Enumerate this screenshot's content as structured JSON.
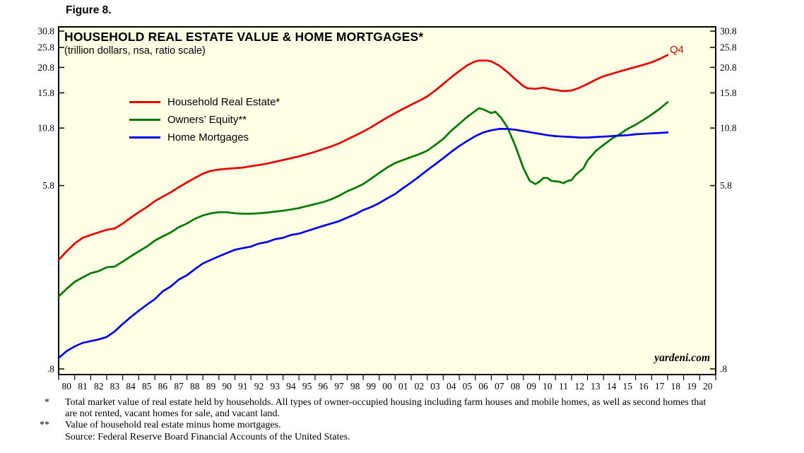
{
  "figure_label": "Figure 8.",
  "chart_data": {
    "type": "line",
    "title": "HOUSEHOLD REAL ESTATE VALUE & HOME MORTGAGES*",
    "subtitle": "(trillion dollars, nsa, ratio scale)",
    "scale": "log (ratio scale)",
    "plot_background": "#ffffe6",
    "watermark": "yardeni.com",
    "end_label": {
      "text": "Q4",
      "color": "#e00000"
    },
    "legend_position": "inside-top-left",
    "grid": false,
    "y_axis": {
      "sides": "both",
      "tick_labels": [
        "30.8",
        "25.8",
        "20.8",
        "15.8",
        "10.8",
        "5.8",
        ".8"
      ],
      "tick_values": [
        30.8,
        25.8,
        20.8,
        15.8,
        10.8,
        5.8,
        0.8
      ],
      "anchor_top": 30.8,
      "anchor_bottom": 0.8
    },
    "x_axis": {
      "min": 1980,
      "max": 2021,
      "tick_labels": [
        "80",
        "81",
        "82",
        "83",
        "84",
        "85",
        "86",
        "87",
        "88",
        "89",
        "90",
        "91",
        "92",
        "93",
        "94",
        "95",
        "96",
        "97",
        "98",
        "99",
        "00",
        "01",
        "02",
        "03",
        "04",
        "05",
        "06",
        "07",
        "08",
        "09",
        "10",
        "11",
        "12",
        "13",
        "14",
        "15",
        "16",
        "17",
        "18",
        "19",
        "20"
      ]
    },
    "series": [
      {
        "name": "Household Real Estate*",
        "color": "#e80000",
        "points": [
          [
            1980,
            2.6
          ],
          [
            1980.5,
            2.85
          ],
          [
            1981,
            3.1
          ],
          [
            1981.5,
            3.3
          ],
          [
            1982,
            3.4
          ],
          [
            1982.5,
            3.5
          ],
          [
            1983,
            3.6
          ],
          [
            1983.5,
            3.65
          ],
          [
            1984,
            3.85
          ],
          [
            1984.5,
            4.1
          ],
          [
            1985,
            4.35
          ],
          [
            1985.5,
            4.6
          ],
          [
            1986,
            4.9
          ],
          [
            1986.5,
            5.15
          ],
          [
            1987,
            5.4
          ],
          [
            1987.5,
            5.7
          ],
          [
            1988,
            6.0
          ],
          [
            1988.5,
            6.3
          ],
          [
            1989,
            6.6
          ],
          [
            1989.5,
            6.8
          ],
          [
            1990,
            6.9
          ],
          [
            1990.5,
            6.95
          ],
          [
            1991,
            7.0
          ],
          [
            1991.5,
            7.05
          ],
          [
            1992,
            7.15
          ],
          [
            1992.5,
            7.25
          ],
          [
            1993,
            7.35
          ],
          [
            1993.5,
            7.5
          ],
          [
            1994,
            7.65
          ],
          [
            1994.5,
            7.8
          ],
          [
            1995,
            7.95
          ],
          [
            1995.5,
            8.15
          ],
          [
            1996,
            8.35
          ],
          [
            1996.5,
            8.6
          ],
          [
            1997,
            8.85
          ],
          [
            1997.5,
            9.15
          ],
          [
            1998,
            9.55
          ],
          [
            1998.5,
            9.95
          ],
          [
            1999,
            10.4
          ],
          [
            1999.5,
            10.9
          ],
          [
            2000,
            11.5
          ],
          [
            2000.5,
            12.1
          ],
          [
            2001,
            12.7
          ],
          [
            2001.5,
            13.3
          ],
          [
            2002,
            13.9
          ],
          [
            2002.5,
            14.5
          ],
          [
            2003,
            15.2
          ],
          [
            2003.5,
            16.2
          ],
          [
            2004,
            17.4
          ],
          [
            2004.5,
            18.7
          ],
          [
            2005,
            20.0
          ],
          [
            2005.5,
            21.3
          ],
          [
            2006,
            22.2
          ],
          [
            2006.25,
            22.4
          ],
          [
            2006.75,
            22.4
          ],
          [
            2007,
            22.2
          ],
          [
            2007.5,
            21.2
          ],
          [
            2008,
            19.8
          ],
          [
            2008.5,
            18.3
          ],
          [
            2009,
            17.0
          ],
          [
            2009.25,
            16.6
          ],
          [
            2009.75,
            16.5
          ],
          [
            2010,
            16.6
          ],
          [
            2010.25,
            16.7
          ],
          [
            2010.75,
            16.4
          ],
          [
            2011,
            16.3
          ],
          [
            2011.5,
            16.1
          ],
          [
            2012,
            16.2
          ],
          [
            2012.5,
            16.7
          ],
          [
            2013,
            17.4
          ],
          [
            2013.5,
            18.2
          ],
          [
            2014,
            18.9
          ],
          [
            2014.5,
            19.4
          ],
          [
            2015,
            19.9
          ],
          [
            2015.5,
            20.4
          ],
          [
            2016,
            20.9
          ],
          [
            2016.5,
            21.4
          ],
          [
            2017,
            22.0
          ],
          [
            2017.5,
            22.8
          ],
          [
            2018,
            23.8
          ]
        ]
      },
      {
        "name": "Owners’ Equity**",
        "color": "#007a00",
        "points": [
          [
            1980,
            1.75
          ],
          [
            1980.5,
            1.9
          ],
          [
            1981,
            2.05
          ],
          [
            1981.5,
            2.15
          ],
          [
            1982,
            2.25
          ],
          [
            1982.5,
            2.3
          ],
          [
            1983,
            2.4
          ],
          [
            1983.5,
            2.42
          ],
          [
            1984,
            2.55
          ],
          [
            1984.5,
            2.7
          ],
          [
            1985,
            2.85
          ],
          [
            1985.5,
            3.0
          ],
          [
            1986,
            3.2
          ],
          [
            1986.5,
            3.35
          ],
          [
            1987,
            3.5
          ],
          [
            1987.5,
            3.7
          ],
          [
            1988,
            3.85
          ],
          [
            1988.5,
            4.05
          ],
          [
            1989,
            4.2
          ],
          [
            1989.5,
            4.3
          ],
          [
            1990,
            4.35
          ],
          [
            1990.5,
            4.35
          ],
          [
            1991,
            4.3
          ],
          [
            1991.5,
            4.28
          ],
          [
            1992,
            4.28
          ],
          [
            1992.5,
            4.3
          ],
          [
            1993,
            4.33
          ],
          [
            1993.5,
            4.38
          ],
          [
            1994,
            4.42
          ],
          [
            1994.5,
            4.48
          ],
          [
            1995,
            4.55
          ],
          [
            1995.5,
            4.65
          ],
          [
            1996,
            4.75
          ],
          [
            1996.5,
            4.85
          ],
          [
            1997,
            5.0
          ],
          [
            1997.5,
            5.2
          ],
          [
            1998,
            5.45
          ],
          [
            1998.5,
            5.65
          ],
          [
            1999,
            5.9
          ],
          [
            1999.5,
            6.25
          ],
          [
            2000,
            6.65
          ],
          [
            2000.5,
            7.05
          ],
          [
            2001,
            7.4
          ],
          [
            2001.5,
            7.65
          ],
          [
            2002,
            7.9
          ],
          [
            2002.5,
            8.15
          ],
          [
            2003,
            8.45
          ],
          [
            2003.5,
            9.0
          ],
          [
            2004,
            9.6
          ],
          [
            2004.5,
            10.5
          ],
          [
            2005,
            11.3
          ],
          [
            2005.5,
            12.2
          ],
          [
            2006,
            13.0
          ],
          [
            2006.25,
            13.4
          ],
          [
            2006.5,
            13.2
          ],
          [
            2007,
            12.7
          ],
          [
            2007.25,
            12.9
          ],
          [
            2007.6,
            12.1
          ],
          [
            2008,
            10.9
          ],
          [
            2008.5,
            8.9
          ],
          [
            2009,
            7.0
          ],
          [
            2009.4,
            6.1
          ],
          [
            2009.75,
            5.9
          ],
          [
            2010,
            6.05
          ],
          [
            2010.25,
            6.3
          ],
          [
            2010.5,
            6.3
          ],
          [
            2010.75,
            6.1
          ],
          [
            2011.25,
            6.05
          ],
          [
            2011.5,
            5.95
          ],
          [
            2011.75,
            6.1
          ],
          [
            2012,
            6.15
          ],
          [
            2012.25,
            6.5
          ],
          [
            2012.75,
            7.0
          ],
          [
            2013,
            7.6
          ],
          [
            2013.5,
            8.4
          ],
          [
            2014,
            9.0
          ],
          [
            2014.5,
            9.6
          ],
          [
            2015,
            10.1
          ],
          [
            2015.5,
            10.7
          ],
          [
            2016,
            11.2
          ],
          [
            2016.5,
            11.8
          ],
          [
            2017,
            12.5
          ],
          [
            2017.5,
            13.3
          ],
          [
            2018,
            14.3
          ]
        ]
      },
      {
        "name": "Home Mortgages",
        "color": "#0000e8",
        "points": [
          [
            1980,
            0.9
          ],
          [
            1980.5,
            0.97
          ],
          [
            1981,
            1.02
          ],
          [
            1981.5,
            1.06
          ],
          [
            1982,
            1.08
          ],
          [
            1982.5,
            1.1
          ],
          [
            1983,
            1.13
          ],
          [
            1983.5,
            1.2
          ],
          [
            1984,
            1.3
          ],
          [
            1984.5,
            1.4
          ],
          [
            1985,
            1.5
          ],
          [
            1985.5,
            1.6
          ],
          [
            1986,
            1.7
          ],
          [
            1986.5,
            1.85
          ],
          [
            1987,
            1.95
          ],
          [
            1987.5,
            2.1
          ],
          [
            1988,
            2.2
          ],
          [
            1988.5,
            2.35
          ],
          [
            1989,
            2.5
          ],
          [
            1989.5,
            2.6
          ],
          [
            1990,
            2.7
          ],
          [
            1990.5,
            2.8
          ],
          [
            1991,
            2.9
          ],
          [
            1991.5,
            2.95
          ],
          [
            1992,
            3.0
          ],
          [
            1992.5,
            3.1
          ],
          [
            1993,
            3.15
          ],
          [
            1993.5,
            3.25
          ],
          [
            1994,
            3.3
          ],
          [
            1994.5,
            3.4
          ],
          [
            1995,
            3.45
          ],
          [
            1995.5,
            3.55
          ],
          [
            1996,
            3.65
          ],
          [
            1996.5,
            3.75
          ],
          [
            1997,
            3.85
          ],
          [
            1997.5,
            3.95
          ],
          [
            1998,
            4.1
          ],
          [
            1998.5,
            4.25
          ],
          [
            1999,
            4.45
          ],
          [
            1999.5,
            4.6
          ],
          [
            2000,
            4.8
          ],
          [
            2000.5,
            5.05
          ],
          [
            2001,
            5.3
          ],
          [
            2001.5,
            5.65
          ],
          [
            2002,
            6.0
          ],
          [
            2002.5,
            6.4
          ],
          [
            2003,
            6.85
          ],
          [
            2003.5,
            7.3
          ],
          [
            2004,
            7.8
          ],
          [
            2004.5,
            8.35
          ],
          [
            2005,
            8.9
          ],
          [
            2005.5,
            9.4
          ],
          [
            2006,
            9.9
          ],
          [
            2006.5,
            10.3
          ],
          [
            2007,
            10.55
          ],
          [
            2007.5,
            10.7
          ],
          [
            2008,
            10.7
          ],
          [
            2008.5,
            10.6
          ],
          [
            2009,
            10.45
          ],
          [
            2009.5,
            10.3
          ],
          [
            2010,
            10.15
          ],
          [
            2010.5,
            10.0
          ],
          [
            2011,
            9.9
          ],
          [
            2011.5,
            9.85
          ],
          [
            2012,
            9.8
          ],
          [
            2012.5,
            9.75
          ],
          [
            2013,
            9.75
          ],
          [
            2013.5,
            9.8
          ],
          [
            2014,
            9.85
          ],
          [
            2014.5,
            9.9
          ],
          [
            2015,
            9.95
          ],
          [
            2015.5,
            10.0
          ],
          [
            2016,
            10.1
          ],
          [
            2016.5,
            10.15
          ],
          [
            2017,
            10.2
          ],
          [
            2017.5,
            10.25
          ],
          [
            2018,
            10.3
          ]
        ]
      }
    ]
  },
  "footnotes": [
    {
      "marker": "*",
      "text": "Total market value of real estate held by households. All types of owner-occupied housing including farm houses and mobile homes, as well as second homes that are not rented, vacant homes for sale, and vacant land."
    },
    {
      "marker": "**",
      "text": "Value of household real estate minus home mortgages."
    },
    {
      "marker": "",
      "text": "Source: Federal Reserve Board Financial Accounts of the United States."
    }
  ]
}
